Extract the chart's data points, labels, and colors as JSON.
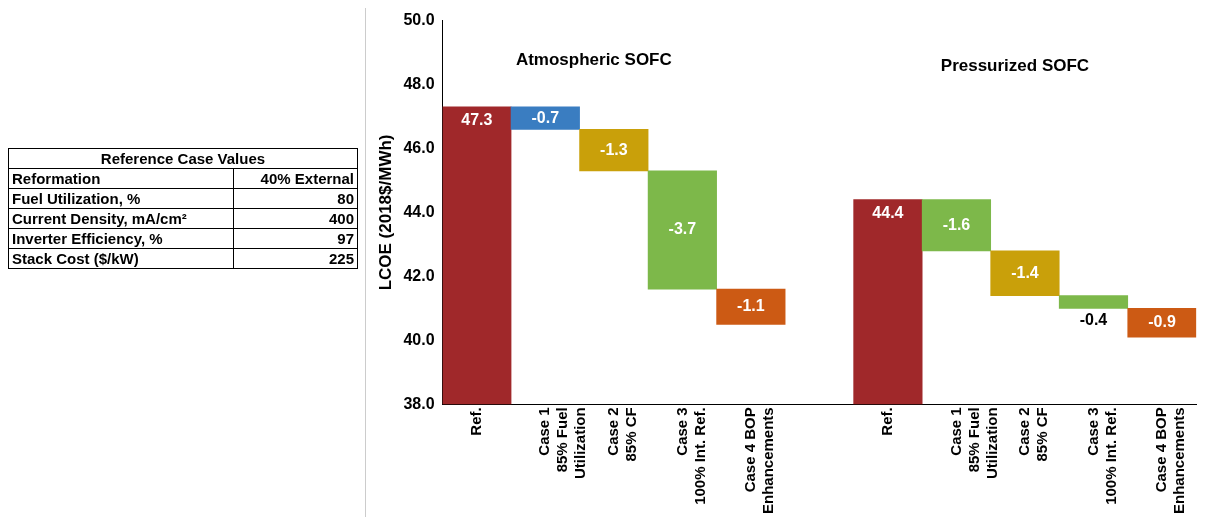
{
  "chart_data": [
    {
      "type": "other",
      "title": "Reference Case Values",
      "annotations": [
        "Reformation",
        "40% External",
        "Fuel Utilization, %",
        "80",
        "Current Density, mA/cm²",
        "400",
        "Inverter Efficiency, %",
        "97",
        "Stack Cost ($/kW)",
        "225"
      ]
    },
    {
      "type": "bar",
      "ylabel": "LCOE (2018$/MWh)",
      "categories": [
        "Ref.",
        "Case 1\n85% Fuel\nUtilization",
        "Case 2\n85% CF",
        "Case 3\n100% Int. Ref.",
        "Case 4 BOP\nEnhancements",
        null,
        "Ref.",
        "Case 1\n85% Fuel\nUtilization",
        "Case 2\n85% CF",
        "Case 3\n100% Int. Ref.",
        "Case 4 BOP\nEnhancements"
      ],
      "values": [
        47.3,
        -0.7,
        -1.3,
        -3.7,
        -1.1,
        null,
        44.4,
        -1.6,
        -1.4,
        -0.4,
        -0.9
      ],
      "base": [
        null,
        47.3,
        46.6,
        45.3,
        41.6,
        null,
        null,
        44.4,
        42.8,
        41.4,
        41.0
      ],
      "colors": [
        "#a0282a",
        "#3a7dc1",
        "#c9a00a",
        "#7db84a",
        "#cc5a14",
        "#ffffff",
        "#a0282a",
        "#7db84a",
        "#c9a00a",
        "#7db84a",
        "#cc5a14"
      ],
      "ylim": [
        38,
        50
      ],
      "yticks": [
        {
          "value": 38,
          "label": "38.0"
        },
        {
          "value": 40,
          "label": "40.0"
        },
        {
          "value": 42,
          "label": "42.0"
        },
        {
          "value": 44,
          "label": "44.0"
        },
        {
          "value": 46,
          "label": "46.0"
        },
        {
          "value": 48,
          "label": "48.0"
        },
        {
          "value": 50,
          "label": "50.0"
        }
      ],
      "data_labels": true,
      "grid": false,
      "legend": false,
      "annotations": [
        "Atmospheric SOFC",
        "Pressurized SOFC"
      ]
    }
  ]
}
